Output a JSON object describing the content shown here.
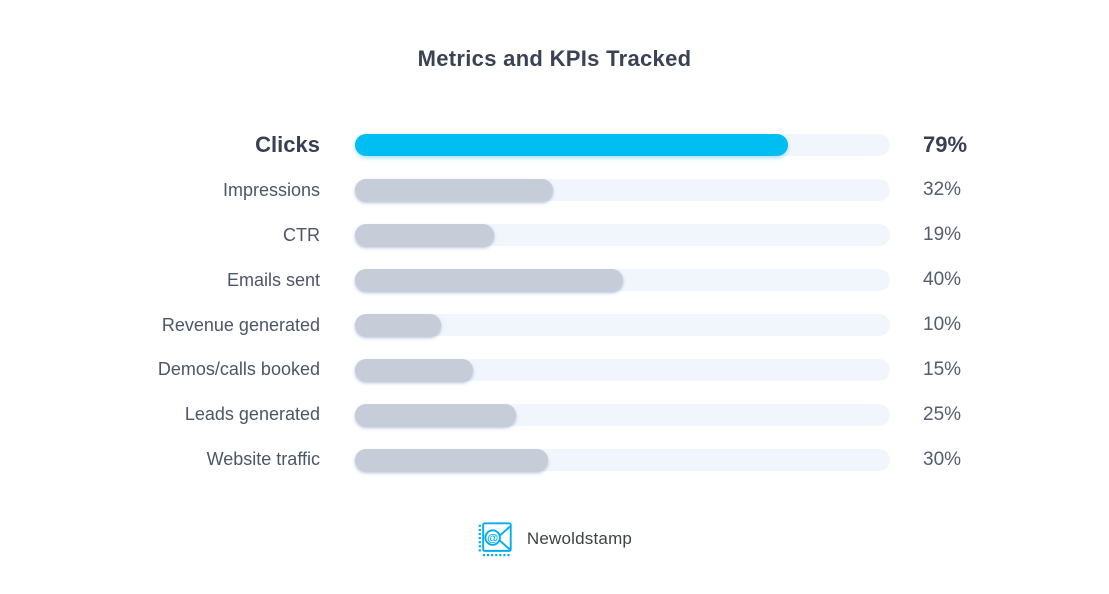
{
  "title": "Metrics and KPIs Tracked",
  "chart_data": {
    "type": "bar",
    "orientation": "horizontal",
    "title": "Metrics and KPIs Tracked",
    "categories": [
      "Clicks",
      "Impressions",
      "CTR",
      "Emails sent",
      "Revenue generated",
      "Demos/calls booked",
      "Leads generated",
      "Website traffic"
    ],
    "values": [
      79,
      32,
      19,
      40,
      10,
      15,
      25,
      30
    ],
    "unit": "%",
    "xlim": [
      0,
      100
    ],
    "grid": false,
    "legend": false,
    "highlighted_category": "Clicks",
    "rows": [
      {
        "label": "Clicks",
        "value": 79,
        "display": "79%",
        "bar_pct": 81,
        "highlight": true
      },
      {
        "label": "Impressions",
        "value": 32,
        "display": "32%",
        "bar_pct": 37,
        "highlight": false
      },
      {
        "label": "CTR",
        "value": 19,
        "display": "19%",
        "bar_pct": 26,
        "highlight": false
      },
      {
        "label": "Emails sent",
        "value": 40,
        "display": "40%",
        "bar_pct": 50,
        "highlight": false
      },
      {
        "label": "Revenue generated",
        "value": 10,
        "display": "10%",
        "bar_pct": 16,
        "highlight": false
      },
      {
        "label": "Demos/calls booked",
        "value": 15,
        "display": "15%",
        "bar_pct": 22,
        "highlight": false
      },
      {
        "label": "Leads generated",
        "value": 25,
        "display": "25%",
        "bar_pct": 30,
        "highlight": false
      },
      {
        "label": "Website traffic",
        "value": 30,
        "display": "30%",
        "bar_pct": 36,
        "highlight": false
      }
    ],
    "colors": {
      "highlight_bar": "#00bdf2",
      "bar": "#c7ccd9",
      "track": "#f1f5fc",
      "title_text": "#3b4255",
      "label_text": "#4d5568",
      "value_text": "#545c6d",
      "highlight_text": "#383f52"
    }
  },
  "footer": {
    "brand": "Newoldstamp",
    "logo_icon": "stamp-envelope-at-icon",
    "logo_color": "#00aeef",
    "text_color": "#3e4245"
  }
}
